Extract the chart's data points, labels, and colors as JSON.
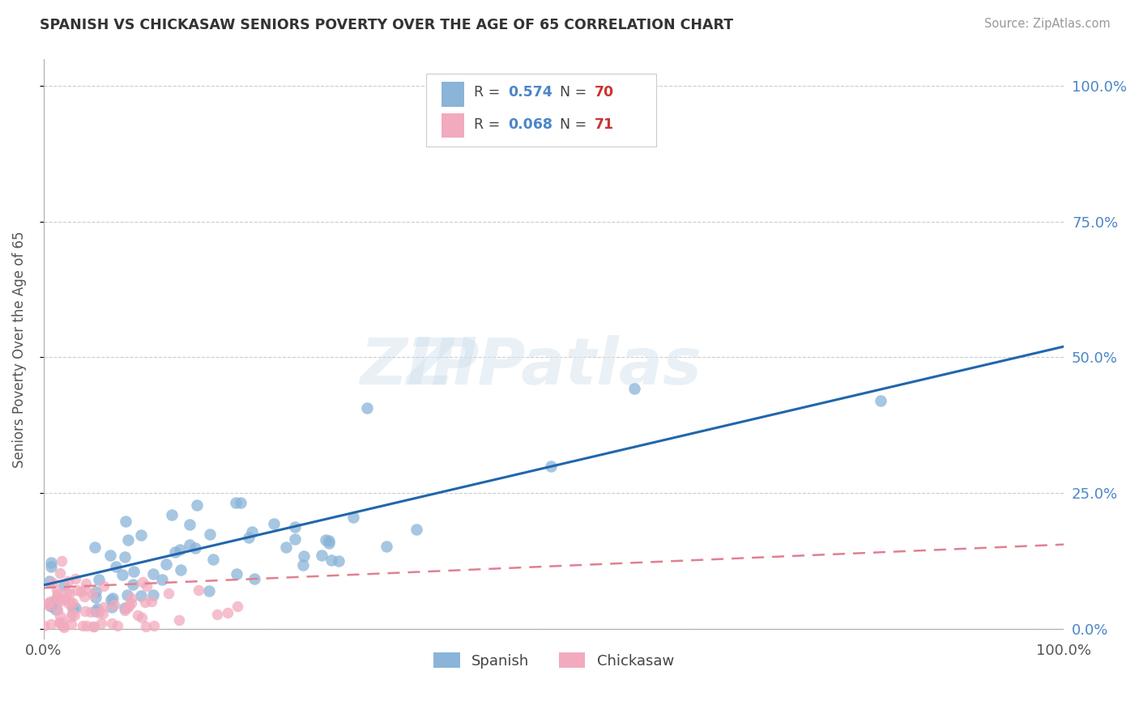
{
  "title": "SPANISH VS CHICKASAW SENIORS POVERTY OVER THE AGE OF 65 CORRELATION CHART",
  "source_text": "Source: ZipAtlas.com",
  "ylabel": "Seniors Poverty Over the Age of 65",
  "xlim": [
    0.0,
    1.0
  ],
  "ylim": [
    -0.02,
    1.05
  ],
  "ytick_values": [
    0.0,
    0.25,
    0.5,
    0.75,
    1.0
  ],
  "ytick_labels": [
    "0.0%",
    "25.0%",
    "50.0%",
    "75.0%",
    "100.0%"
  ],
  "xtick_values": [
    0.0,
    1.0
  ],
  "xtick_labels": [
    "0.0%",
    "100.0%"
  ],
  "spanish_color": "#8ab4d8",
  "chickasaw_color": "#f2aabe",
  "spanish_line_color": "#2166ac",
  "chickasaw_line_color": "#e08090",
  "r_spanish": 0.574,
  "n_spanish": 70,
  "r_chickasaw": 0.068,
  "n_chickasaw": 71,
  "background_color": "#ffffff",
  "title_color": "#333333",
  "source_color": "#999999",
  "ylabel_color": "#555555",
  "tick_color": "#555555",
  "right_tick_color": "#4a86c8",
  "grid_color": "#cccccc",
  "legend_edge_color": "#cccccc",
  "legend_r_color": "#4a86c8",
  "legend_n_color": "#cc3333",
  "watermark_color": "#dce8f0"
}
